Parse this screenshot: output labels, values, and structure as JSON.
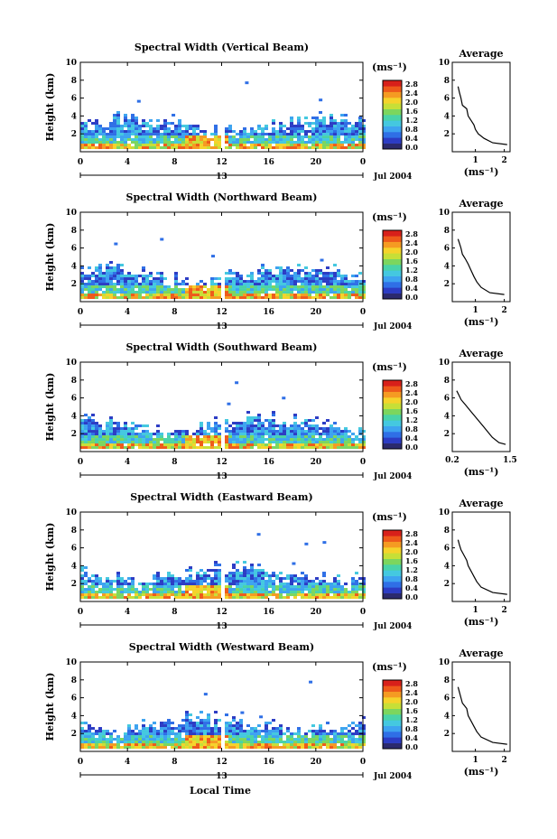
{
  "footer": {
    "xlabel": "Local Time"
  },
  "colorbar": {
    "unit_label": "(ms⁻¹)",
    "ticks": [
      "2.8",
      "2.4",
      "2.0",
      "1.6",
      "1.2",
      "0.8",
      "0.4",
      "0.0"
    ],
    "colors": [
      "#2b2a6e",
      "#2c3cc4",
      "#2f6fe6",
      "#3da3f0",
      "#44c8e0",
      "#49d3a8",
      "#7cd65e",
      "#c7df37",
      "#f5d32b",
      "#f59b22",
      "#ee5a1a",
      "#d8201a"
    ]
  },
  "date_label": "Jul 2004",
  "date_day": "13",
  "chart_data": [
    {
      "type": "heatmap",
      "title": "Spectral Width (Vertical Beam)",
      "ylabel": "Height (km)",
      "ylim": [
        0,
        10
      ],
      "yticks": [
        "2",
        "4",
        "6",
        "8",
        "10"
      ],
      "xlim": [
        0,
        24
      ],
      "xticks": [
        "0",
        "4",
        "8",
        "12",
        "16",
        "20",
        "0"
      ],
      "day_marker": "13",
      "date": "Jul 2004",
      "average": {
        "title": "Average",
        "xlabel": "(ms⁻¹)",
        "xticks": [
          "1",
          "2"
        ],
        "xlim": [
          0.2,
          2.2
        ],
        "yticks": [
          "2",
          "4",
          "6",
          "8",
          "10"
        ],
        "profile": [
          [
            0.4,
            7.3
          ],
          [
            0.45,
            6.6
          ],
          [
            0.5,
            6.0
          ],
          [
            0.55,
            5.2
          ],
          [
            0.7,
            4.8
          ],
          [
            0.75,
            4.0
          ],
          [
            0.85,
            3.5
          ],
          [
            0.95,
            3.0
          ],
          [
            1.0,
            2.5
          ],
          [
            1.1,
            2.0
          ],
          [
            1.3,
            1.5
          ],
          [
            1.6,
            1.0
          ],
          [
            2.1,
            0.8
          ]
        ]
      }
    },
    {
      "type": "heatmap",
      "title": "Spectral Width (Northward Beam)",
      "ylabel": "Height (km)",
      "ylim": [
        0,
        10
      ],
      "yticks": [
        "2",
        "4",
        "6",
        "8",
        "10"
      ],
      "xlim": [
        0,
        24
      ],
      "xticks": [
        "0",
        "4",
        "8",
        "12",
        "16",
        "20",
        "0"
      ],
      "day_marker": "13",
      "date": "Jul 2004",
      "average": {
        "title": "Average",
        "xlabel": "(ms⁻¹)",
        "xticks": [
          "1",
          "2"
        ],
        "xlim": [
          0.2,
          2.2
        ],
        "yticks": [
          "2",
          "4",
          "6",
          "8",
          "10"
        ],
        "profile": [
          [
            0.4,
            7.0
          ],
          [
            0.45,
            6.5
          ],
          [
            0.5,
            6.0
          ],
          [
            0.55,
            5.3
          ],
          [
            0.65,
            4.8
          ],
          [
            0.75,
            4.2
          ],
          [
            0.85,
            3.5
          ],
          [
            0.95,
            2.8
          ],
          [
            1.05,
            2.2
          ],
          [
            1.2,
            1.6
          ],
          [
            1.5,
            1.0
          ],
          [
            2.0,
            0.8
          ]
        ]
      }
    },
    {
      "type": "heatmap",
      "title": "Spectral Width (Southward Beam)",
      "ylabel": "Height (km)",
      "ylim": [
        0,
        10
      ],
      "yticks": [
        "2",
        "4",
        "6",
        "8",
        "10"
      ],
      "xlim": [
        0,
        24
      ],
      "xticks": [
        "0",
        "4",
        "8",
        "12",
        "16",
        "20",
        "0"
      ],
      "day_marker": "13",
      "date": "Jul 2004",
      "average": {
        "title": "Average",
        "xlabel": "(ms⁻¹)",
        "xticks": [
          "0.2",
          "1.5"
        ],
        "xlim": [
          0.2,
          1.5
        ],
        "yticks": [
          "2",
          "4",
          "6",
          "8",
          "10"
        ],
        "profile": [
          [
            0.3,
            6.8
          ],
          [
            0.35,
            6.3
          ],
          [
            0.4,
            5.8
          ],
          [
            0.5,
            5.2
          ],
          [
            0.6,
            4.6
          ],
          [
            0.7,
            4.0
          ],
          [
            0.8,
            3.4
          ],
          [
            0.9,
            2.8
          ],
          [
            1.0,
            2.2
          ],
          [
            1.1,
            1.6
          ],
          [
            1.25,
            1.0
          ],
          [
            1.4,
            0.8
          ]
        ]
      }
    },
    {
      "type": "heatmap",
      "title": "Spectral Width (Eastward Beam)",
      "ylabel": "Height (km)",
      "ylim": [
        0,
        10
      ],
      "yticks": [
        "2",
        "4",
        "6",
        "8",
        "10"
      ],
      "xlim": [
        0,
        24
      ],
      "xticks": [
        "0",
        "4",
        "8",
        "12",
        "16",
        "20",
        "0"
      ],
      "day_marker": "13",
      "date": "Jul 2004",
      "average": {
        "title": "Average",
        "xlabel": "(ms⁻¹)",
        "xticks": [
          "1",
          "2"
        ],
        "xlim": [
          0.2,
          2.2
        ],
        "yticks": [
          "2",
          "4",
          "6",
          "8",
          "10"
        ],
        "profile": [
          [
            0.4,
            6.9
          ],
          [
            0.45,
            6.3
          ],
          [
            0.5,
            5.8
          ],
          [
            0.6,
            5.2
          ],
          [
            0.7,
            4.6
          ],
          [
            0.75,
            4.0
          ],
          [
            0.85,
            3.4
          ],
          [
            0.95,
            2.8
          ],
          [
            1.05,
            2.2
          ],
          [
            1.2,
            1.6
          ],
          [
            1.6,
            1.0
          ],
          [
            2.1,
            0.8
          ]
        ]
      }
    },
    {
      "type": "heatmap",
      "title": "Spectral Width (Westward Beam)",
      "ylabel": "Height (km)",
      "ylim": [
        0,
        10
      ],
      "yticks": [
        "2",
        "4",
        "6",
        "8",
        "10"
      ],
      "xlim": [
        0,
        24
      ],
      "xticks": [
        "0",
        "4",
        "8",
        "12",
        "16",
        "20",
        "0"
      ],
      "day_marker": "13",
      "date": "Jul 2004",
      "average": {
        "title": "Average",
        "xlabel": "(ms⁻¹)",
        "xticks": [
          "1",
          "2"
        ],
        "xlim": [
          0.2,
          2.2
        ],
        "yticks": [
          "2",
          "4",
          "6",
          "8",
          "10"
        ],
        "profile": [
          [
            0.4,
            7.2
          ],
          [
            0.45,
            6.6
          ],
          [
            0.5,
            6.0
          ],
          [
            0.55,
            5.4
          ],
          [
            0.7,
            4.8
          ],
          [
            0.75,
            4.0
          ],
          [
            0.85,
            3.4
          ],
          [
            0.95,
            2.8
          ],
          [
            1.05,
            2.2
          ],
          [
            1.2,
            1.6
          ],
          [
            1.6,
            1.0
          ],
          [
            2.1,
            0.8
          ]
        ]
      }
    }
  ]
}
